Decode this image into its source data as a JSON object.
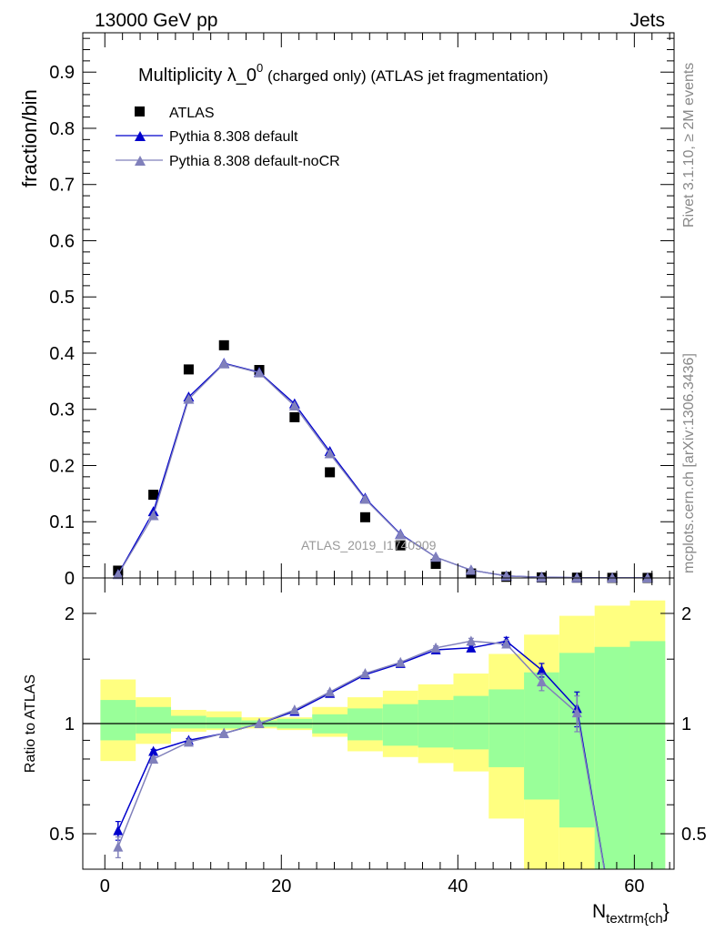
{
  "header": {
    "left": "13000 GeV pp",
    "right": "Jets"
  },
  "side_labels": {
    "rivet": "Rivet 3.1.10, ≥ 2M events",
    "mcplots": "mcplots.cern.ch [arXiv:1306.3436]"
  },
  "watermark": "ATLAS_2019_I1740909",
  "chart_data": [
    {
      "type": "scatter",
      "title_main": "Multiplicity λ_0",
      "title_sup": "0",
      "title_rest": " (charged only) (ATLAS jet fragmentation)",
      "ylabel": "fraction/bin",
      "ylim": [
        0,
        0.97
      ],
      "yticks": [
        0,
        0.1,
        0.2,
        0.3,
        0.4,
        0.5,
        0.6,
        0.7,
        0.8,
        0.9
      ],
      "ytick_labels": [
        "0",
        "0.1",
        "0.2",
        "0.3",
        "0.4",
        "0.5",
        "0.6",
        "0.7",
        "0.8",
        "0.9"
      ],
      "legend": [
        "ATLAS",
        "Pythia 8.308 default",
        "Pythia 8.308 default-noCR"
      ],
      "x": [
        1.5,
        5.5,
        9.5,
        13.5,
        17.5,
        21.5,
        25.5,
        29.5,
        33.5,
        37.5,
        41.5,
        45.5,
        49.5,
        53.5,
        57.5,
        61.5
      ],
      "series": [
        {
          "name": "ATLAS",
          "color": "#000000",
          "marker": "square",
          "values": [
            0.013,
            0.148,
            0.371,
            0.414,
            0.37,
            0.286,
            0.188,
            0.108,
            0.058,
            0.025,
            0.008,
            0.002,
            0.001,
            0.0005,
            0.0002,
            0.0001
          ]
        },
        {
          "name": "Pythia 8.308 default",
          "color": "#0000cc",
          "marker": "triangle",
          "values": [
            0.0065,
            0.118,
            0.322,
            0.382,
            0.366,
            0.31,
            0.225,
            0.142,
            0.078,
            0.037,
            0.014,
            0.0035,
            0.0015,
            0.0005,
            0.0001,
            0.0001
          ]
        },
        {
          "name": "Pythia 8.308 default-noCR",
          "color": "#8080bb",
          "marker": "triangle",
          "values": [
            0.006,
            0.111,
            0.318,
            0.381,
            0.365,
            0.306,
            0.221,
            0.14,
            0.077,
            0.037,
            0.014,
            0.0035,
            0.0015,
            0.0005,
            0.0001,
            0.0001
          ]
        }
      ]
    },
    {
      "type": "line",
      "ylabel": "Ratio to ATLAS",
      "xlabel": "N",
      "xlabel_sub": "textrm{ch",
      "xlabel_close": "}",
      "xlim": [
        -2.5,
        64.5
      ],
      "ylim": [
        0.4,
        2.5
      ],
      "xticks": [
        0,
        20,
        40,
        60
      ],
      "xtick_labels": [
        "0",
        "20",
        "40",
        "60"
      ],
      "yticks": [
        0.5,
        1,
        2
      ],
      "ytick_labels": [
        "0.5",
        "1",
        "2"
      ],
      "bins": [
        [
          -0.5,
          3.5
        ],
        [
          3.5,
          7.5
        ],
        [
          7.5,
          11.5
        ],
        [
          11.5,
          15.5
        ],
        [
          15.5,
          19.5
        ],
        [
          19.5,
          23.5
        ],
        [
          23.5,
          27.5
        ],
        [
          27.5,
          31.5
        ],
        [
          31.5,
          35.5
        ],
        [
          35.5,
          39.5
        ],
        [
          39.5,
          43.5
        ],
        [
          43.5,
          47.5
        ],
        [
          47.5,
          51.5
        ],
        [
          51.5,
          55.5
        ],
        [
          55.5,
          59.5
        ],
        [
          59.5,
          63.5
        ]
      ],
      "band_inner": [
        [
          0.9,
          1.16
        ],
        [
          0.94,
          1.11
        ],
        [
          0.97,
          1.05
        ],
        [
          0.97,
          1.04
        ],
        [
          0.98,
          1.02
        ],
        [
          0.97,
          1.03
        ],
        [
          0.94,
          1.06
        ],
        [
          0.9,
          1.1
        ],
        [
          0.87,
          1.13
        ],
        [
          0.86,
          1.16
        ],
        [
          0.85,
          1.19
        ],
        [
          0.76,
          1.24
        ],
        [
          0.62,
          1.38
        ],
        [
          0.52,
          1.56
        ],
        [
          0.34,
          1.62
        ],
        [
          0.34,
          1.68
        ]
      ],
      "band_outer": [
        [
          0.79,
          1.32
        ],
        [
          0.88,
          1.18
        ],
        [
          0.95,
          1.09
        ],
        [
          0.96,
          1.08
        ],
        [
          0.97,
          1.04
        ],
        [
          0.96,
          1.04
        ],
        [
          0.92,
          1.11
        ],
        [
          0.84,
          1.18
        ],
        [
          0.81,
          1.23
        ],
        [
          0.78,
          1.28
        ],
        [
          0.74,
          1.37
        ],
        [
          0.55,
          1.55
        ],
        [
          0.36,
          1.75
        ],
        [
          0.36,
          1.97
        ],
        [
          0.42,
          2.1
        ],
        [
          0.34,
          2.17
        ]
      ],
      "series": [
        {
          "name": "Pythia 8.308 default",
          "color": "#0000cc",
          "values": [
            0.51,
            0.84,
            0.9,
            0.94,
            1.0,
            1.08,
            1.21,
            1.36,
            1.46,
            1.59,
            1.61,
            1.68,
            1.4,
            1.1,
            0.3,
            0.3
          ],
          "errors": [
            0.03,
            0.01,
            0.01,
            0.005,
            0.005,
            0.005,
            0.01,
            0.01,
            0.015,
            0.02,
            0.025,
            0.04,
            0.06,
            0.12,
            0,
            0
          ]
        },
        {
          "name": "Pythia 8.308 default-noCR",
          "color": "#8080bb",
          "values": [
            0.46,
            0.8,
            0.89,
            0.94,
            1.0,
            1.09,
            1.22,
            1.37,
            1.47,
            1.61,
            1.68,
            1.65,
            1.3,
            1.07,
            0.3,
            0.3
          ],
          "errors": [
            0.03,
            0.01,
            0.01,
            0.005,
            0.005,
            0.005,
            0.01,
            0.01,
            0.015,
            0.02,
            0.03,
            0.04,
            0.07,
            0.12,
            0,
            0
          ]
        }
      ]
    }
  ]
}
